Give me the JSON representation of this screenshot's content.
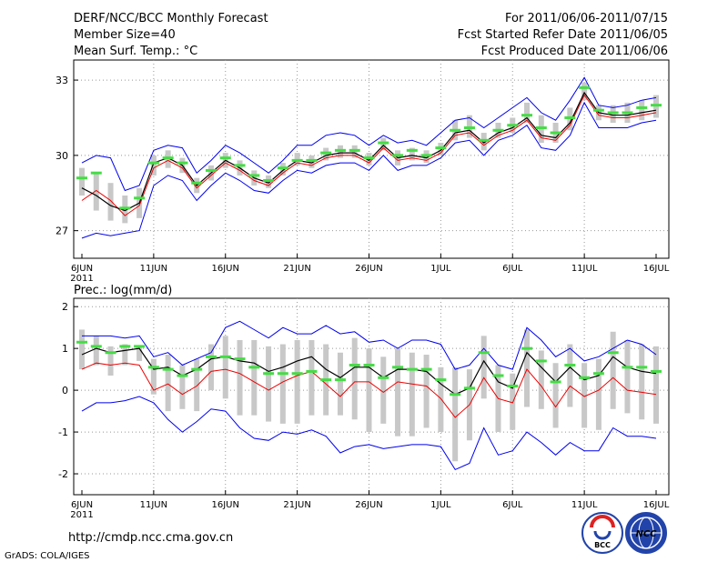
{
  "header": {
    "title": "DERF/NCC/BCC Monthly Forecast",
    "member": "Member Size=40",
    "variable": "Mean Surf. Temp.: °C",
    "period": "For 2011/06/06-2011/07/15",
    "refer": "Fcst Started Refer Date 2011/06/05",
    "produced": "Fcst Produced Date 2011/06/06"
  },
  "footer": {
    "url": "http://cmdp.ncc.cma.gov.cn",
    "grads": "GrADS: COLA/IGES",
    "logo_bcc": "BCC",
    "logo_ncc": "NCC"
  },
  "colors": {
    "max_min": "#0000ee",
    "mean": "#000000",
    "ensemble": "#ee0000",
    "box": "#c8c8c8",
    "observed": "#44dd44",
    "grid": "#999999"
  },
  "chart_data": [
    {
      "type": "line",
      "title": "Mean Surf. Temp.: °C",
      "x_ticks": [
        "6JUN",
        "11JUN",
        "16JUN",
        "21JUN",
        "26JUN",
        "1JUL",
        "6JUL",
        "11JUL",
        "16JUL"
      ],
      "x_sublabel": "2011",
      "ylim": [
        25.9,
        33.8
      ],
      "y_ticks": [
        27,
        30,
        33
      ],
      "day_range": [
        0,
        40
      ],
      "grid": true,
      "series": [
        {
          "name": "max",
          "color": "blue",
          "values": [
            29.7,
            30.0,
            29.9,
            28.6,
            28.8,
            30.2,
            30.4,
            30.3,
            29.3,
            29.8,
            30.4,
            30.1,
            29.7,
            29.3,
            29.8,
            30.4,
            30.4,
            30.8,
            30.9,
            30.8,
            30.4,
            30.8,
            30.5,
            30.6,
            30.4,
            30.9,
            31.4,
            31.5,
            31.1,
            31.5,
            31.9,
            32.3,
            31.7,
            31.4,
            32.2,
            33.1,
            32.0,
            31.9,
            32.0,
            32.2,
            32.3
          ]
        },
        {
          "name": "mean",
          "color": "black",
          "values": [
            28.7,
            28.4,
            28.0,
            27.8,
            28.1,
            29.7,
            29.9,
            29.6,
            28.8,
            29.3,
            29.8,
            29.5,
            29.1,
            28.9,
            29.4,
            29.8,
            29.7,
            30.0,
            30.1,
            30.1,
            29.8,
            30.4,
            29.9,
            30.0,
            29.9,
            30.2,
            30.9,
            31.0,
            30.5,
            30.9,
            31.1,
            31.5,
            30.8,
            30.7,
            31.3,
            32.5,
            31.7,
            31.6,
            31.6,
            31.7,
            31.8
          ]
        },
        {
          "name": "ensemble",
          "color": "red",
          "values": [
            28.2,
            28.6,
            28.2,
            27.6,
            28.0,
            29.5,
            29.8,
            29.5,
            28.7,
            29.2,
            29.7,
            29.4,
            29.0,
            28.8,
            29.3,
            29.7,
            29.6,
            29.9,
            30.0,
            30.0,
            29.7,
            30.3,
            29.8,
            29.9,
            29.8,
            30.1,
            30.8,
            30.9,
            30.4,
            30.8,
            31.0,
            31.4,
            30.7,
            30.6,
            31.2,
            32.4,
            31.6,
            31.5,
            31.5,
            31.6,
            31.7
          ]
        },
        {
          "name": "min",
          "color": "blue",
          "values": [
            26.7,
            26.9,
            26.8,
            26.9,
            27.0,
            28.8,
            29.2,
            29.0,
            28.2,
            28.8,
            29.3,
            29.0,
            28.6,
            28.5,
            29.0,
            29.4,
            29.3,
            29.6,
            29.7,
            29.7,
            29.4,
            30.0,
            29.4,
            29.6,
            29.6,
            29.9,
            30.5,
            30.6,
            30.0,
            30.6,
            30.8,
            31.2,
            30.3,
            30.2,
            30.8,
            32.1,
            31.1,
            31.1,
            31.1,
            31.3,
            31.4
          ]
        },
        {
          "name": "box_high",
          "color": "gray",
          "values": [
            29.5,
            29.3,
            28.9,
            28.4,
            28.7,
            30.0,
            30.2,
            29.9,
            29.1,
            29.6,
            30.1,
            29.8,
            29.4,
            29.2,
            29.7,
            30.1,
            30.0,
            30.3,
            30.4,
            30.4,
            30.1,
            30.7,
            30.2,
            30.3,
            30.2,
            30.5,
            31.4,
            31.6,
            30.9,
            31.3,
            31.5,
            32.1,
            31.6,
            31.3,
            31.9,
            32.9,
            32.0,
            32.0,
            32.1,
            32.2,
            32.4
          ]
        },
        {
          "name": "box_low",
          "color": "gray",
          "values": [
            28.4,
            27.8,
            27.4,
            27.3,
            27.5,
            29.2,
            29.5,
            29.3,
            28.5,
            29.0,
            29.5,
            29.2,
            28.8,
            28.7,
            29.2,
            29.6,
            29.5,
            29.8,
            29.9,
            29.9,
            29.6,
            30.2,
            29.6,
            29.8,
            29.7,
            30.0,
            30.6,
            30.7,
            30.2,
            30.7,
            30.9,
            31.3,
            30.5,
            30.5,
            31.0,
            32.2,
            31.4,
            31.3,
            31.3,
            31.4,
            31.5
          ]
        },
        {
          "name": "observed",
          "color": "green",
          "values": [
            29.1,
            29.3,
            null,
            27.9,
            28.3,
            29.7,
            29.9,
            29.7,
            28.9,
            29.4,
            29.9,
            29.6,
            29.2,
            29.0,
            29.5,
            29.8,
            29.8,
            30.1,
            30.2,
            30.2,
            29.9,
            30.5,
            30.0,
            30.2,
            30.0,
            30.3,
            31.0,
            31.1,
            30.6,
            31.0,
            31.2,
            31.6,
            31.1,
            30.9,
            31.5,
            32.7,
            31.8,
            31.7,
            31.7,
            31.9,
            32.0
          ]
        }
      ]
    },
    {
      "type": "line",
      "title": "Prec.: log(mm/d)",
      "x_ticks": [
        "6JUN",
        "11JUN",
        "16JUN",
        "21JUN",
        "26JUN",
        "1JUL",
        "6JUL",
        "11JUL",
        "16JUL"
      ],
      "x_sublabel": "2011",
      "ylim": [
        -2.5,
        2.2
      ],
      "y_ticks": [
        -2,
        -1,
        0,
        1,
        2
      ],
      "day_range": [
        0,
        40
      ],
      "grid": true,
      "series": [
        {
          "name": "max",
          "color": "blue",
          "values": [
            1.3,
            1.3,
            1.3,
            1.25,
            1.3,
            0.8,
            0.9,
            0.6,
            0.75,
            0.9,
            1.5,
            1.65,
            1.45,
            1.25,
            1.5,
            1.35,
            1.35,
            1.55,
            1.35,
            1.4,
            1.15,
            1.2,
            1.0,
            1.2,
            1.2,
            1.1,
            0.5,
            0.6,
            1.0,
            0.6,
            0.5,
            1.5,
            1.2,
            0.8,
            1.0,
            0.7,
            0.8,
            1.0,
            1.2,
            1.1,
            0.85
          ]
        },
        {
          "name": "mean",
          "color": "black",
          "values": [
            0.85,
            1.0,
            0.9,
            0.95,
            1.0,
            0.5,
            0.55,
            0.35,
            0.5,
            0.75,
            0.8,
            0.7,
            0.65,
            0.45,
            0.55,
            0.7,
            0.8,
            0.5,
            0.3,
            0.55,
            0.55,
            0.3,
            0.5,
            0.5,
            0.45,
            0.15,
            -0.1,
            0.05,
            0.7,
            0.2,
            0.05,
            0.9,
            0.55,
            0.2,
            0.55,
            0.25,
            0.35,
            0.8,
            0.55,
            0.45,
            0.4
          ]
        },
        {
          "name": "ensemble",
          "color": "red",
          "values": [
            0.5,
            0.65,
            0.6,
            0.65,
            0.6,
            0.0,
            0.15,
            -0.1,
            0.1,
            0.45,
            0.5,
            0.4,
            0.2,
            0.0,
            0.2,
            0.35,
            0.45,
            0.15,
            -0.15,
            0.2,
            0.2,
            -0.05,
            0.2,
            0.15,
            0.1,
            -0.2,
            -0.65,
            -0.35,
            0.3,
            -0.2,
            -0.3,
            0.5,
            0.1,
            -0.4,
            0.1,
            -0.15,
            0.0,
            0.3,
            0.0,
            -0.05,
            -0.1
          ]
        },
        {
          "name": "min",
          "color": "blue",
          "values": [
            -0.5,
            -0.3,
            -0.3,
            -0.25,
            -0.15,
            -0.3,
            -0.7,
            -1.0,
            -0.75,
            -0.45,
            -0.5,
            -0.9,
            -1.15,
            -1.2,
            -1.0,
            -1.05,
            -0.95,
            -1.1,
            -1.5,
            -1.35,
            -1.3,
            -1.4,
            -1.35,
            -1.3,
            -1.3,
            -1.35,
            -1.9,
            -1.75,
            -0.9,
            -1.55,
            -1.45,
            -1.0,
            -1.25,
            -1.55,
            -1.25,
            -1.45,
            -1.45,
            -0.9,
            -1.1,
            -1.1,
            -1.15
          ]
        },
        {
          "name": "box_high",
          "color": "gray",
          "values": [
            1.45,
            1.3,
            1.05,
            1.1,
            1.05,
            0.75,
            0.85,
            0.6,
            0.75,
            1.1,
            1.3,
            1.2,
            1.2,
            1.05,
            1.1,
            1.2,
            1.2,
            1.1,
            0.9,
            1.25,
            1.0,
            0.8,
            1.0,
            0.9,
            0.85,
            0.55,
            0.55,
            0.5,
            1.3,
            0.6,
            0.4,
            1.45,
            0.95,
            0.65,
            1.1,
            0.65,
            0.75,
            1.4,
            1.2,
            1.1,
            1.05
          ]
        },
        {
          "name": "box_low",
          "color": "gray",
          "values": [
            0.5,
            0.6,
            0.35,
            0.6,
            0.7,
            -0.1,
            -0.5,
            -0.45,
            -0.5,
            0.0,
            -0.2,
            -0.6,
            -0.6,
            -0.75,
            -0.8,
            -0.8,
            -0.6,
            -0.6,
            -0.6,
            -0.7,
            -1.0,
            -0.8,
            -1.1,
            -1.1,
            -0.9,
            -1.0,
            -1.7,
            -1.2,
            -0.2,
            -1.0,
            -0.95,
            -0.4,
            -0.45,
            -0.9,
            -0.4,
            -0.9,
            -0.95,
            -0.45,
            -0.55,
            -0.7,
            -0.8
          ]
        },
        {
          "name": "observed",
          "color": "green",
          "values": [
            1.15,
            1.05,
            0.9,
            1.05,
            1.05,
            0.55,
            0.5,
            0.35,
            0.5,
            0.8,
            0.8,
            0.75,
            0.55,
            0.4,
            0.4,
            0.4,
            0.45,
            0.25,
            0.25,
            0.6,
            0.6,
            0.3,
            0.55,
            0.5,
            0.5,
            0.25,
            -0.1,
            0.05,
            0.9,
            0.35,
            0.1,
            1.0,
            0.7,
            0.2,
            0.6,
            0.3,
            0.4,
            0.9,
            0.55,
            0.55,
            0.45
          ]
        }
      ]
    }
  ]
}
